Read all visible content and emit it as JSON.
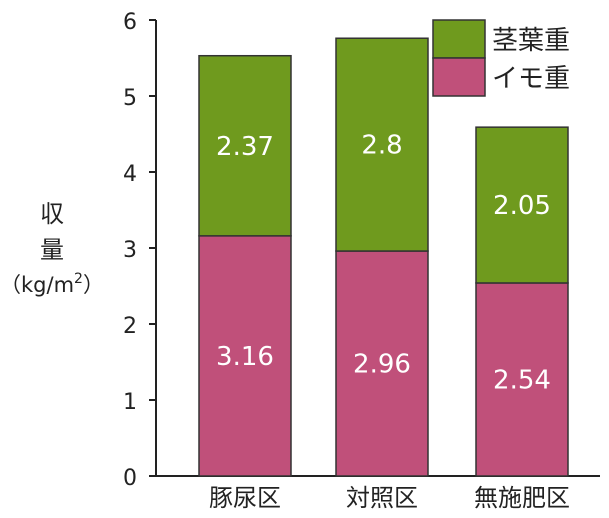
{
  "chart_data": {
    "type": "bar",
    "stacked": true,
    "categories": [
      "豚尿区",
      "対照区",
      "無施肥区"
    ],
    "series": [
      {
        "name": "イモ重",
        "values": [
          3.16,
          2.96,
          2.54
        ],
        "color": "#c0507a"
      },
      {
        "name": "茎葉重",
        "values": [
          2.37,
          2.8,
          2.05
        ],
        "color": "#6f9a1e"
      }
    ],
    "ylabel": {
      "line1": "収",
      "line2": "量",
      "unit_prefix": "（kg/m",
      "unit_sup": "2",
      "unit_suffix": "）"
    },
    "ylim": [
      0,
      6
    ],
    "yticks": [
      "0",
      "1",
      "2",
      "3",
      "4",
      "5",
      "6"
    ],
    "grid": false,
    "legend": {
      "placement": "top-right",
      "order": [
        "茎葉重",
        "イモ重"
      ]
    }
  }
}
